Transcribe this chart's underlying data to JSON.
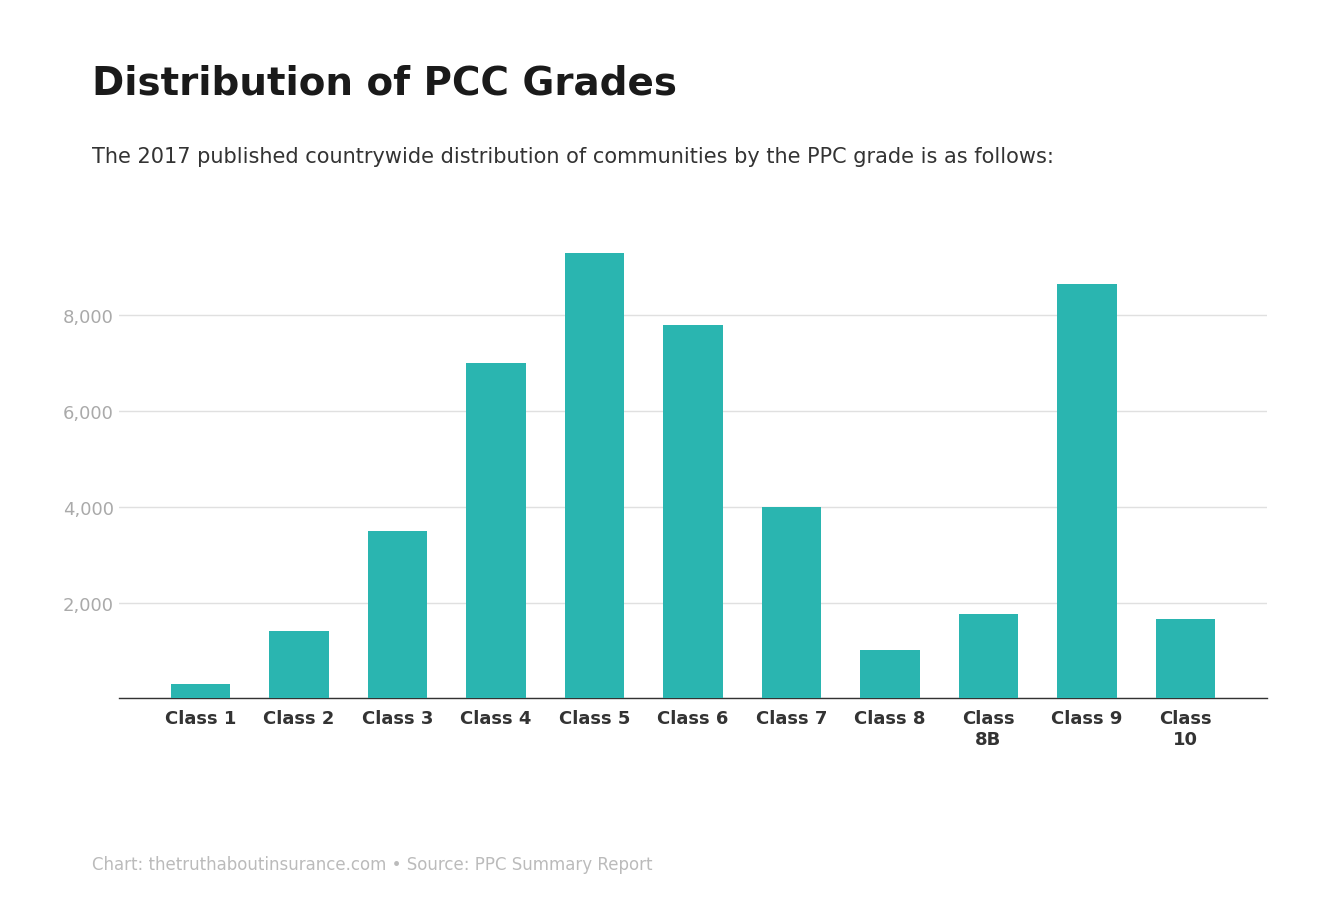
{
  "title": "Distribution of PCC Grades",
  "subtitle": "The 2017 published countrywide distribution of communities by the PPC grade is as follows:",
  "footer": "Chart: thetruthaboutinsurance.com • Source: PPC Summary Report",
  "categories": [
    "Class 1",
    "Class 2",
    "Class 3",
    "Class 4",
    "Class 5",
    "Class 6",
    "Class 7",
    "Class 8",
    "Class\n8B",
    "Class 9",
    "Class\n10"
  ],
  "values": [
    300,
    1400,
    3500,
    7000,
    9300,
    7800,
    4000,
    1000,
    1750,
    8650,
    1650
  ],
  "bar_color": "#2ab5b0",
  "background_color": "#ffffff",
  "ylim": [
    0,
    10000
  ],
  "yticks": [
    0,
    2000,
    4000,
    6000,
    8000
  ],
  "title_fontsize": 28,
  "subtitle_fontsize": 15,
  "footer_fontsize": 12,
  "tick_label_fontsize": 13,
  "ytick_fontsize": 13,
  "title_color": "#1a1a1a",
  "subtitle_color": "#333333",
  "footer_color": "#bbbbbb",
  "tick_color": "#333333",
  "ytick_color": "#aaaaaa",
  "gridline_color": "#e0e0e0",
  "axis_line_color": "#333333"
}
